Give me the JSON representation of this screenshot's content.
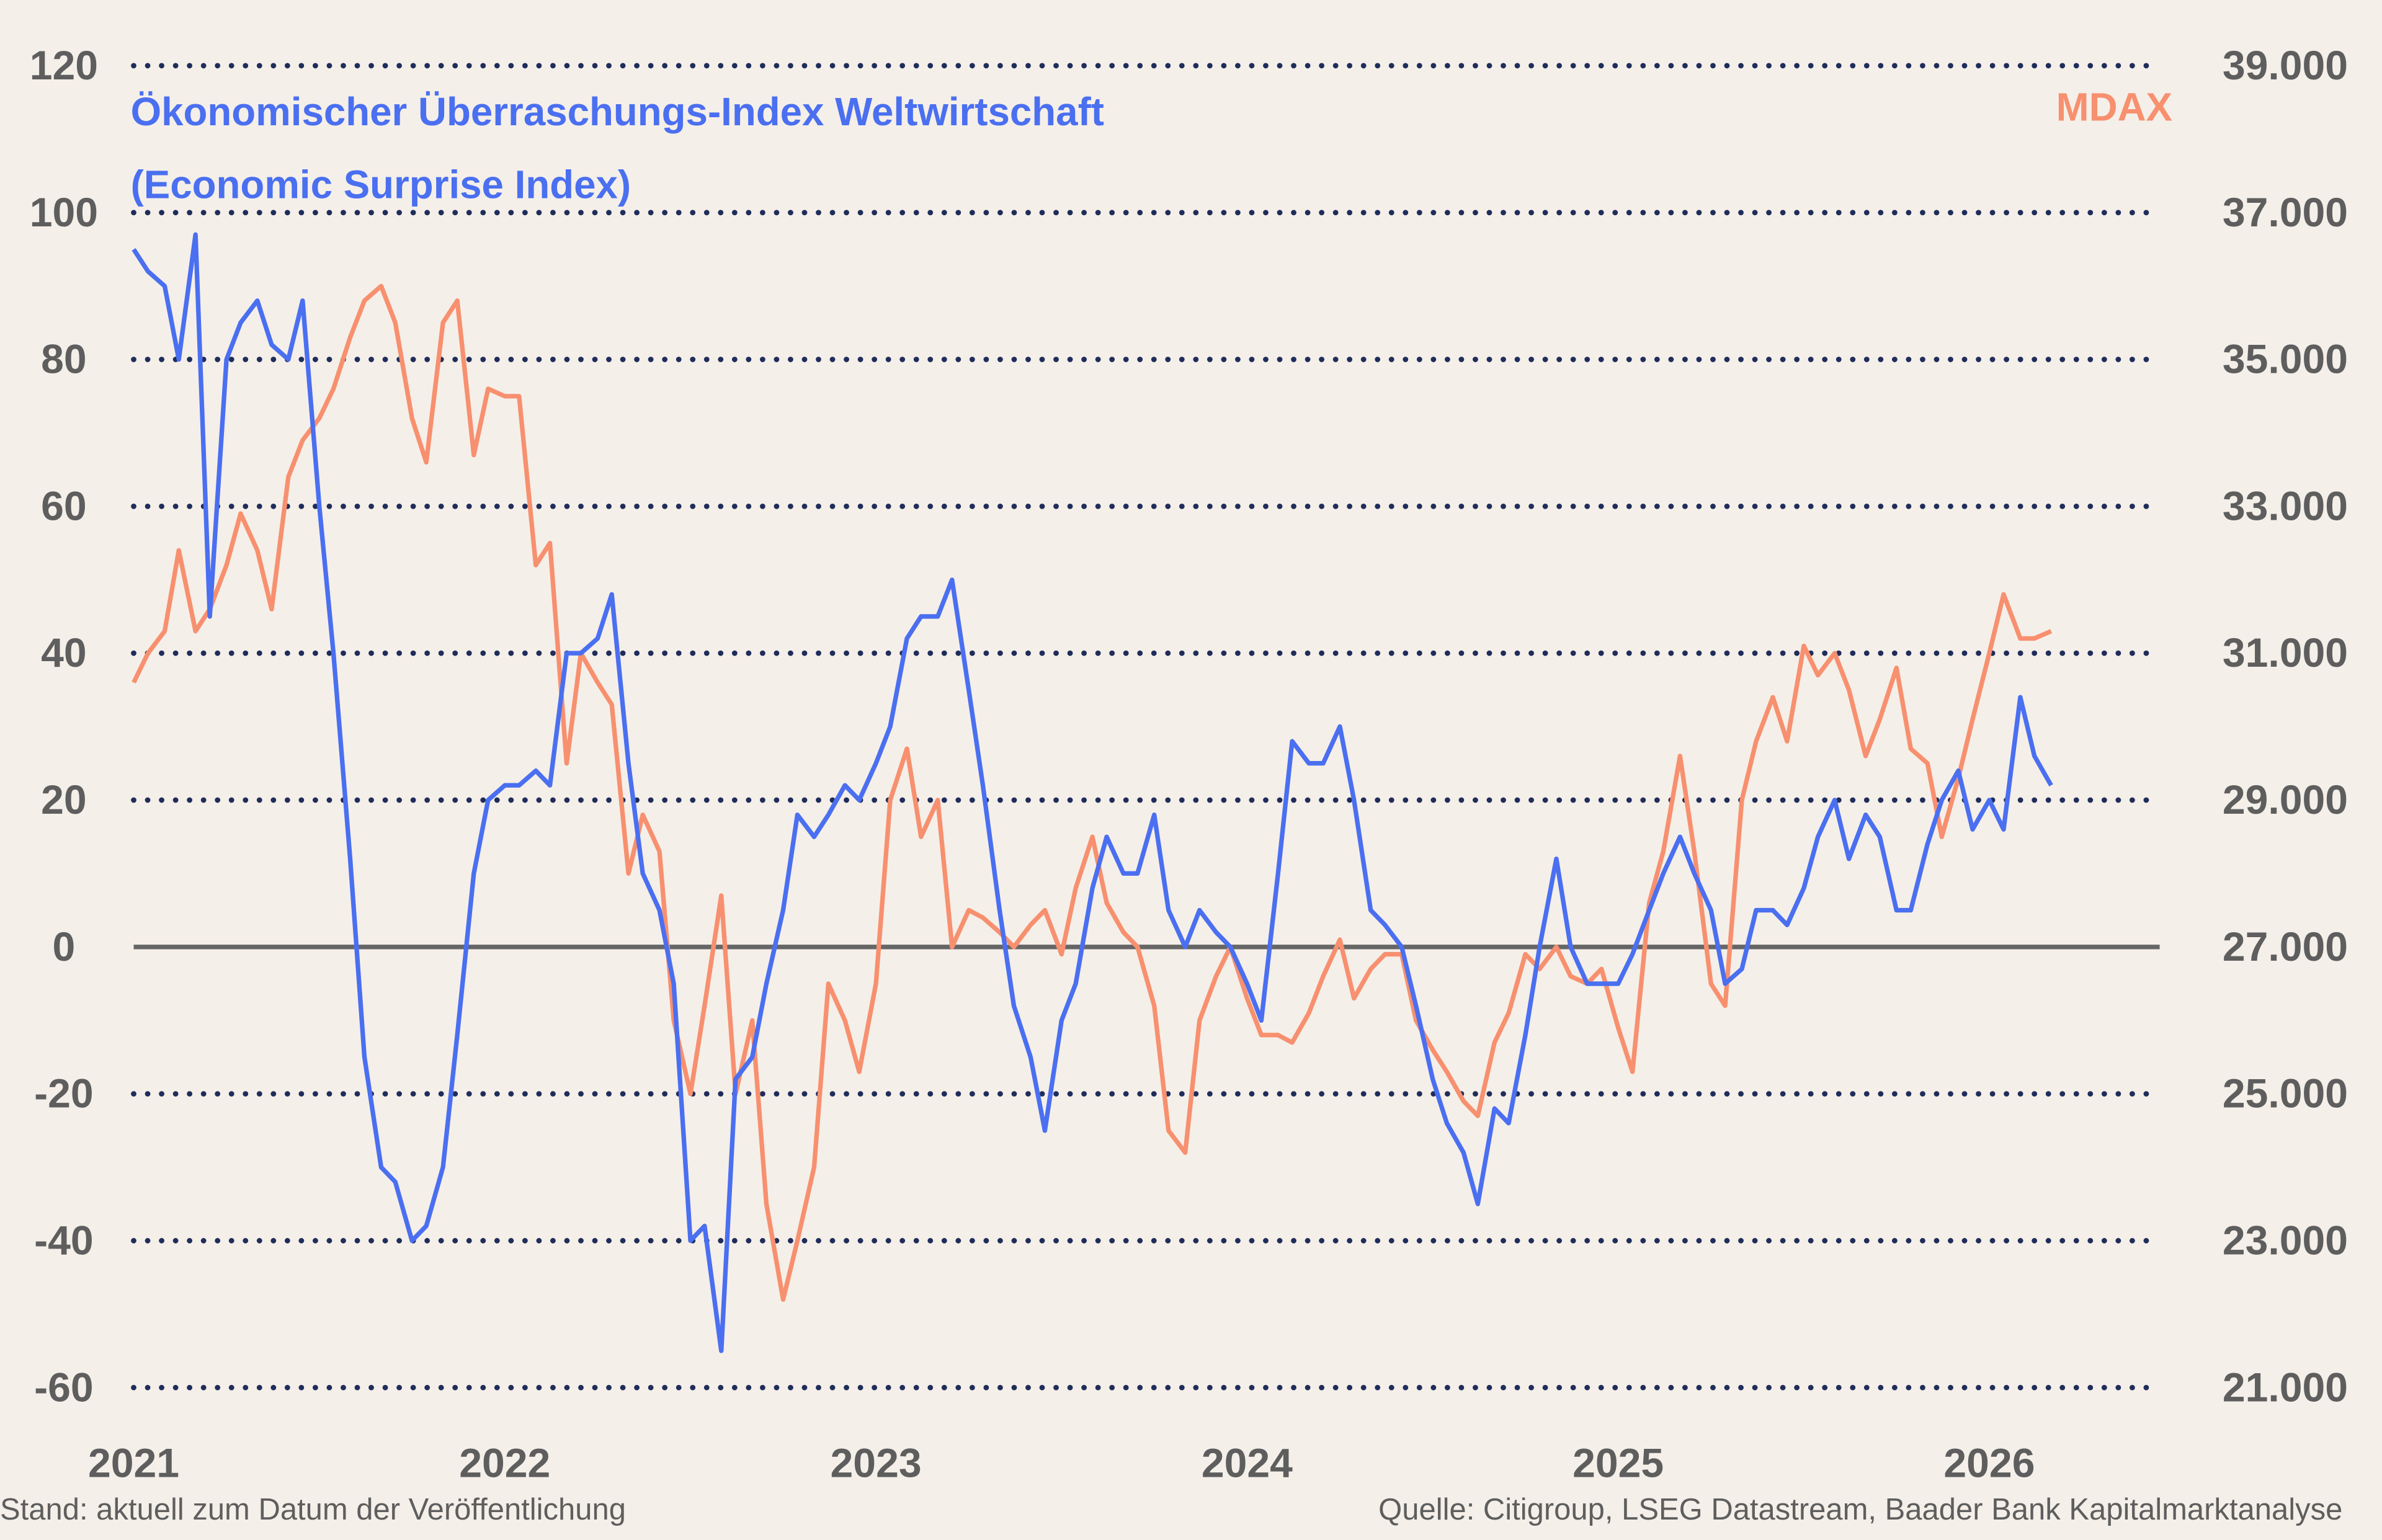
{
  "chart_data": {
    "type": "line",
    "title_left": "Ökonomischer Überraschungs-Index Weltwirtschaft",
    "subtitle_left": "(Economic Surprise Index)",
    "title_right": "MDAX",
    "footer_left": "Stand: aktuell zum Datum der Veröffentlichung",
    "footer_right": "Quelle: Citigroup, LSEG Datastream, Baader Bank Kapitalmarktanalyse",
    "colors": {
      "background": "#f5efe9",
      "esi": "#4a6ff0",
      "mdax": "#f7906f",
      "grid": "#1f2d5a",
      "zero_line": "#666666",
      "text": "#5e5e5e"
    },
    "grid": "horizontal dotted",
    "xlim": [
      "2021-01-01",
      "2026-07-01"
    ],
    "x_ticks": [
      "2021",
      "2022",
      "2023",
      "2024",
      "2025",
      "2026"
    ],
    "y_left": {
      "lim": [
        -60,
        120
      ],
      "ticks": [
        "-60",
        "-40",
        "-20",
        "0",
        "20",
        "40",
        "60",
        "80",
        "100",
        "120"
      ]
    },
    "y_right": {
      "lim": [
        21000,
        39000
      ],
      "ticks": [
        "21.000",
        "23.000",
        "25.000",
        "27.000",
        "29.000",
        "31.000",
        "33.000",
        "35.000",
        "37.000",
        "39.000"
      ]
    },
    "x": [
      "2021-01-01",
      "2021-01-15",
      "2021-02-01",
      "2021-02-15",
      "2021-03-01",
      "2021-03-15",
      "2021-04-01",
      "2021-04-15",
      "2021-05-01",
      "2021-05-15",
      "2021-06-01",
      "2021-06-15",
      "2021-07-01",
      "2021-07-15",
      "2021-08-01",
      "2021-08-15",
      "2021-09-01",
      "2021-09-15",
      "2021-10-01",
      "2021-10-15",
      "2021-11-01",
      "2021-11-15",
      "2021-12-01",
      "2021-12-15",
      "2022-01-01",
      "2022-01-15",
      "2022-02-01",
      "2022-02-15",
      "2022-03-01",
      "2022-03-15",
      "2022-04-01",
      "2022-04-15",
      "2022-05-01",
      "2022-05-15",
      "2022-06-01",
      "2022-06-15",
      "2022-07-01",
      "2022-07-15",
      "2022-08-01",
      "2022-08-15",
      "2022-09-01",
      "2022-09-15",
      "2022-10-01",
      "2022-10-15",
      "2022-11-01",
      "2022-11-15",
      "2022-12-01",
      "2022-12-15",
      "2023-01-01",
      "2023-01-15",
      "2023-02-01",
      "2023-02-15",
      "2023-03-01",
      "2023-03-15",
      "2023-04-01",
      "2023-04-15",
      "2023-05-01",
      "2023-05-15",
      "2023-06-01",
      "2023-06-15",
      "2023-07-01",
      "2023-07-15",
      "2023-08-01",
      "2023-08-15",
      "2023-09-01",
      "2023-09-15",
      "2023-10-01",
      "2023-10-15",
      "2023-11-01",
      "2023-11-15",
      "2023-12-01",
      "2023-12-15",
      "2024-01-01",
      "2024-01-15",
      "2024-02-01",
      "2024-02-15",
      "2024-03-01",
      "2024-03-15",
      "2024-04-01",
      "2024-04-15",
      "2024-05-01",
      "2024-05-15",
      "2024-06-01",
      "2024-06-15",
      "2024-07-01",
      "2024-07-15",
      "2024-08-01",
      "2024-08-15",
      "2024-09-01",
      "2024-09-15",
      "2024-10-01",
      "2024-10-15",
      "2024-11-01",
      "2024-11-15",
      "2024-12-01",
      "2024-12-15",
      "2025-01-01",
      "2025-01-15",
      "2025-02-01",
      "2025-02-15",
      "2025-03-01",
      "2025-03-15",
      "2025-04-01",
      "2025-04-15",
      "2025-05-01",
      "2025-05-15",
      "2025-06-01",
      "2025-06-15",
      "2025-07-01",
      "2025-07-15",
      "2025-08-01",
      "2025-08-15",
      "2025-09-01",
      "2025-09-15",
      "2025-10-01",
      "2025-10-15",
      "2025-11-01",
      "2025-11-15",
      "2025-12-01",
      "2025-12-15",
      "2026-01-01",
      "2026-01-15",
      "2026-02-01",
      "2026-02-15",
      "2026-03-01"
    ],
    "series": [
      {
        "name": "Ökonomischer Überraschungs-Index Weltwirtschaft",
        "axis": "left",
        "values": [
          95,
          92,
          90,
          80,
          97,
          45,
          80,
          85,
          88,
          82,
          80,
          88,
          60,
          40,
          12,
          -15,
          -30,
          -32,
          -40,
          -38,
          -30,
          -12,
          10,
          20,
          22,
          22,
          24,
          22,
          40,
          40,
          42,
          48,
          25,
          10,
          5,
          -5,
          -40,
          -38,
          -55,
          -18,
          -15,
          -5,
          5,
          18,
          15,
          18,
          22,
          20,
          25,
          30,
          42,
          45,
          45,
          50,
          35,
          22,
          5,
          -8,
          -15,
          -25,
          -10,
          -5,
          8,
          15,
          10,
          10,
          18,
          5,
          0,
          5,
          2,
          0,
          -5,
          -10,
          10,
          28,
          25,
          25,
          30,
          20,
          5,
          3,
          0,
          -8,
          -18,
          -24,
          -28,
          -35,
          -22,
          -24,
          -12,
          0,
          12,
          0,
          -5,
          -5,
          -5,
          -1,
          5,
          10,
          15,
          10,
          5,
          -5,
          -3,
          5,
          5,
          3,
          8,
          15,
          20,
          12,
          18,
          15,
          5,
          5,
          14,
          20,
          24,
          16,
          20,
          16,
          34,
          26,
          22
        ]
      },
      {
        "name": "MDAX",
        "axis": "right",
        "values": [
          30600,
          31000,
          31300,
          32400,
          31300,
          31600,
          32200,
          32900,
          32400,
          31600,
          33400,
          33900,
          34200,
          34600,
          35300,
          35800,
          36000,
          35500,
          34200,
          33600,
          35500,
          35800,
          33700,
          34600,
          34500,
          34500,
          32200,
          32500,
          29500,
          31000,
          30600,
          30300,
          28000,
          28800,
          28300,
          26000,
          25000,
          26200,
          27700,
          25000,
          26000,
          23500,
          22200,
          23000,
          24000,
          26500,
          26000,
          25300,
          26500,
          29000,
          29700,
          28500,
          29000,
          27000,
          27500,
          27400,
          27200,
          27000,
          27300,
          27500,
          26900,
          27800,
          28500,
          27600,
          27200,
          27000,
          26200,
          24500,
          24200,
          26000,
          26600,
          27000,
          26300,
          25800,
          25800,
          25700,
          26100,
          26600,
          27100,
          26300,
          26700,
          26900,
          26900,
          26000,
          25600,
          25300,
          24900,
          24700,
          25700,
          26100,
          26900,
          26700,
          27000,
          26600,
          26500,
          26700,
          25900,
          25300,
          27600,
          28300,
          29600,
          28300,
          26500,
          26200,
          29000,
          29800,
          30400,
          29800,
          31100,
          30700,
          31000,
          30500,
          29600,
          30100,
          30800,
          29700,
          29500,
          28500,
          29300,
          30100,
          31000,
          31800,
          31200,
          31200,
          31300
        ]
      }
    ]
  }
}
